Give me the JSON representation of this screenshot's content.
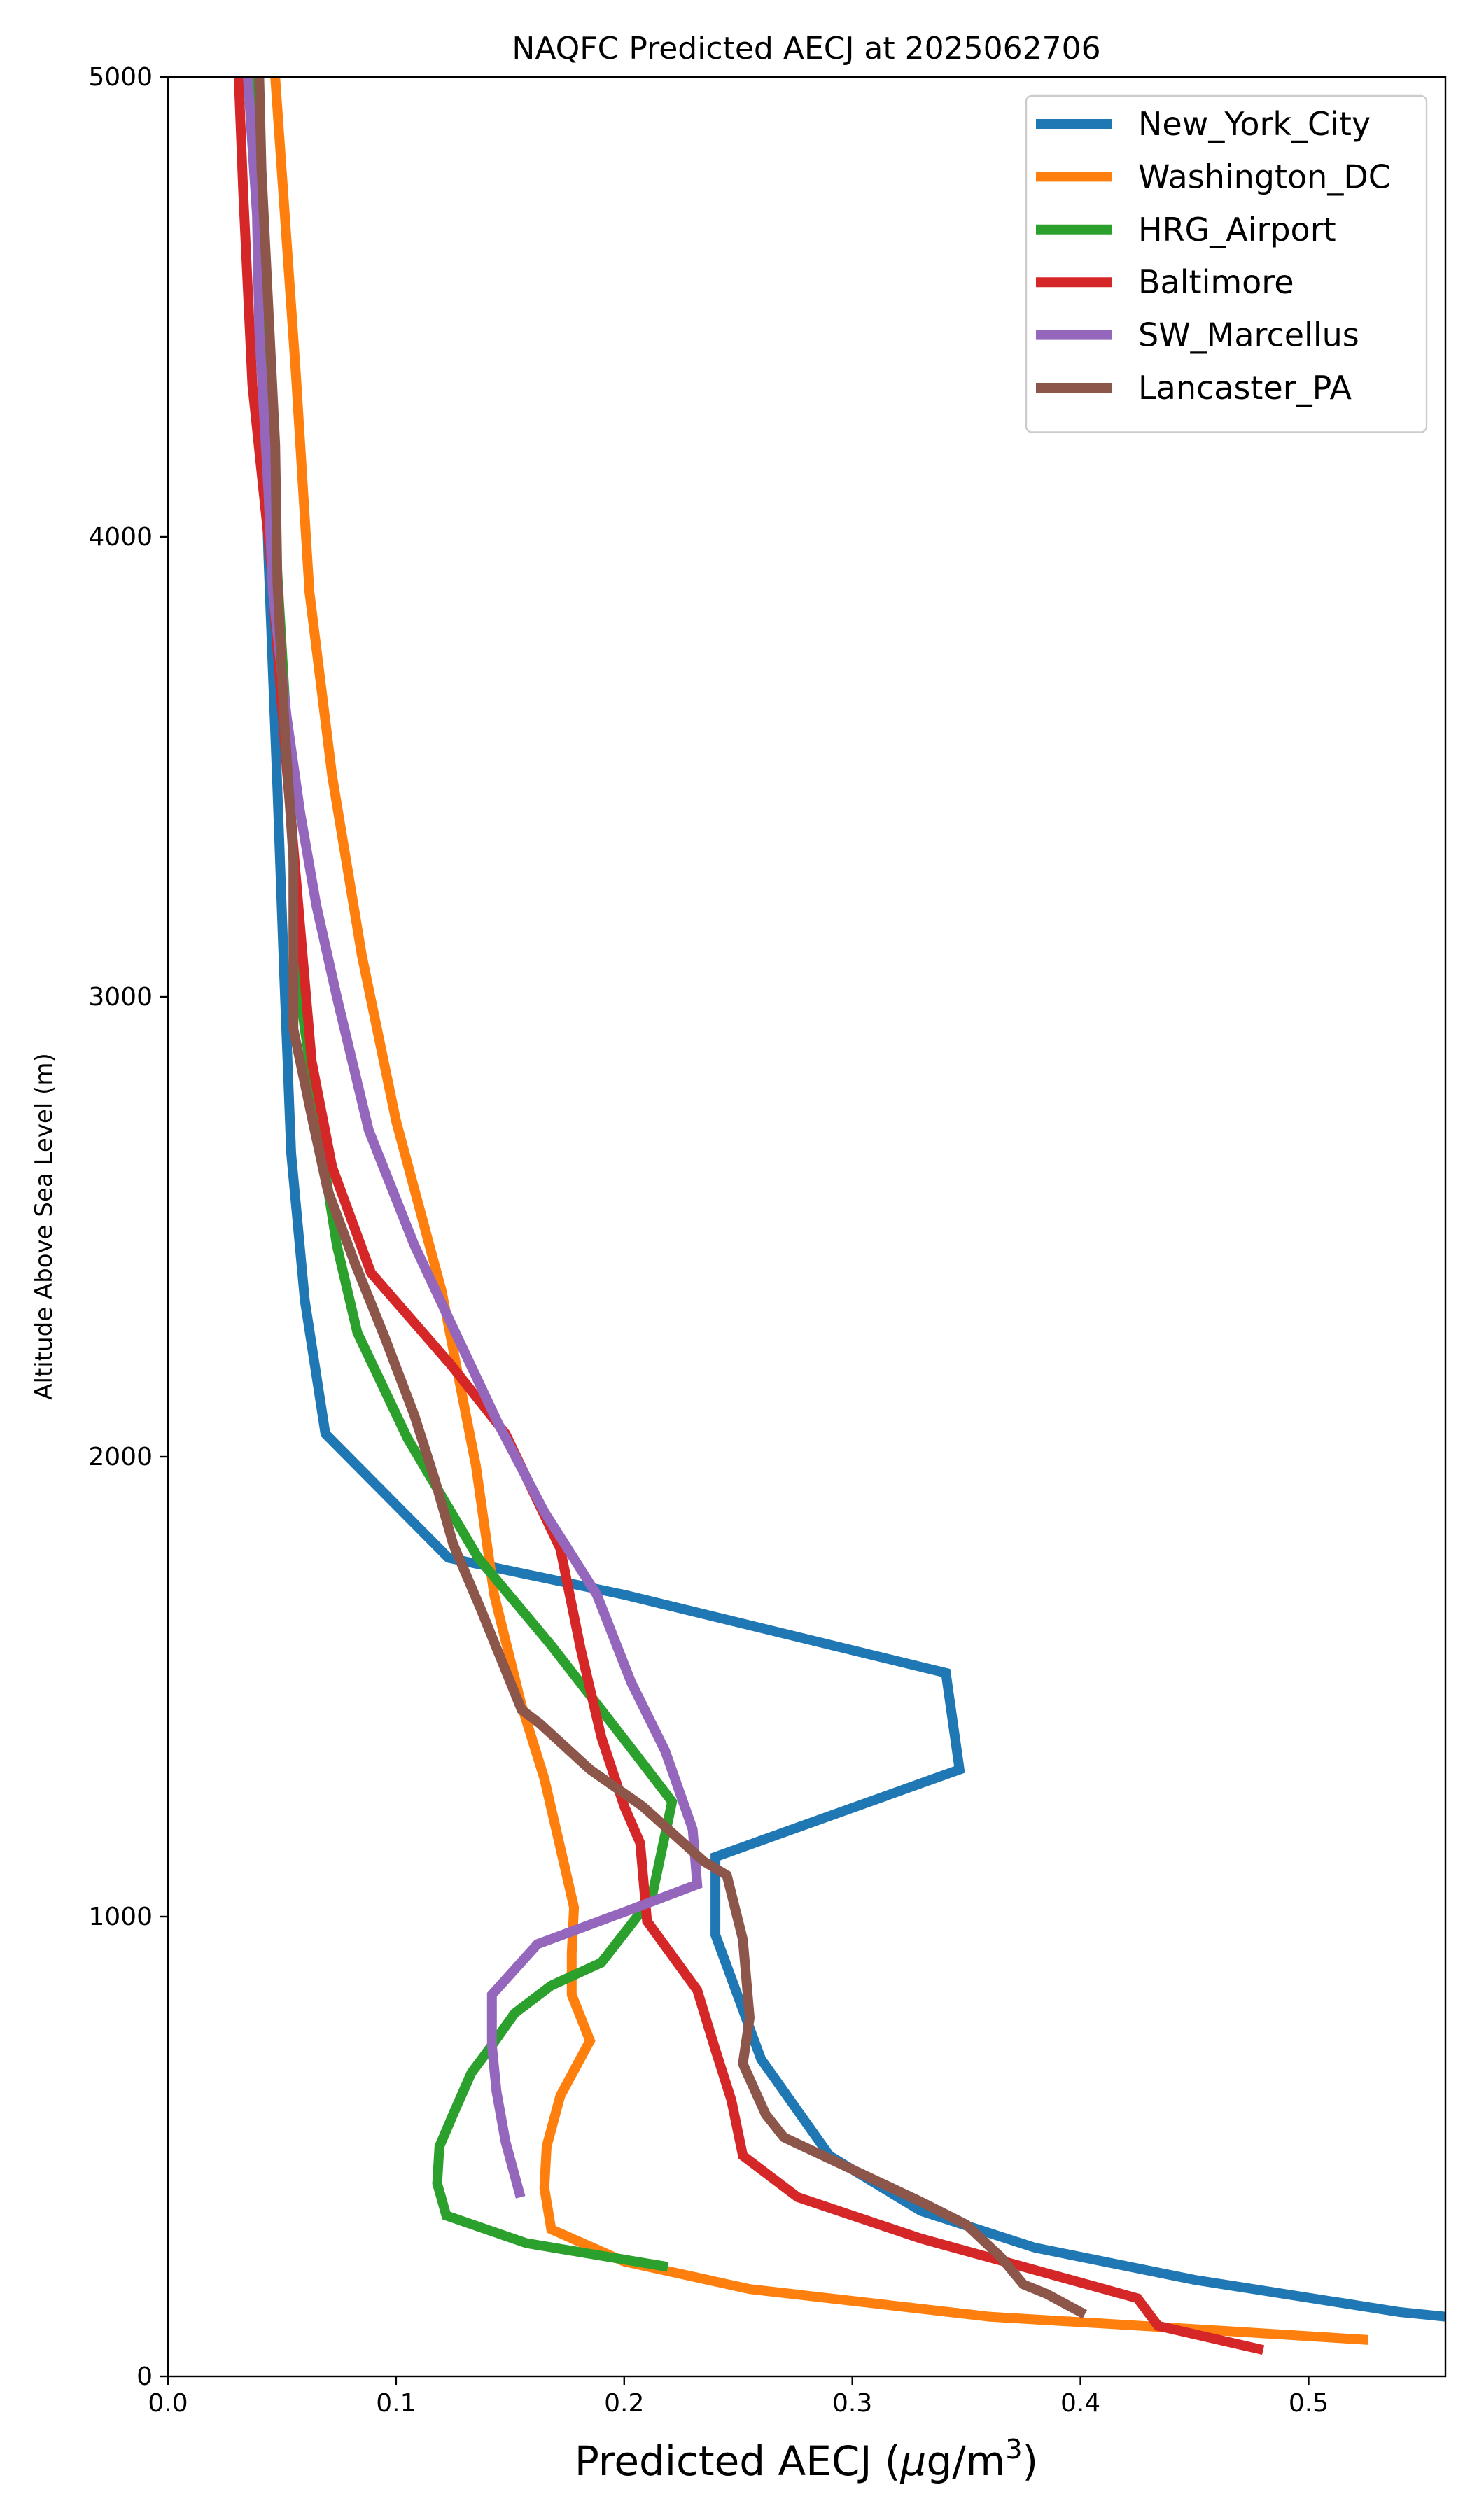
{
  "chart_data": {
    "type": "line",
    "title": "NAQFC Predicted AECJ at 2025062706",
    "xlabel_prefix": "Predicted AECJ (",
    "xlabel_mu": "μ",
    "xlabel_unit": "g/m",
    "xlabel_exp": "3",
    "xlabel_suffix": ")",
    "ylabel": "Altitude Above Sea Level (m)",
    "xlim": [
      0,
      0.56
    ],
    "ylim": [
      0,
      5000
    ],
    "xticks": [
      {
        "value": 0.0,
        "label": "0.0"
      },
      {
        "value": 0.1,
        "label": "0.1"
      },
      {
        "value": 0.2,
        "label": "0.2"
      },
      {
        "value": 0.3,
        "label": "0.3"
      },
      {
        "value": 0.4,
        "label": "0.4"
      },
      {
        "value": 0.5,
        "label": "0.5"
      }
    ],
    "yticks": [
      {
        "value": 0,
        "label": "0"
      },
      {
        "value": 1000,
        "label": "1000"
      },
      {
        "value": 2000,
        "label": "2000"
      },
      {
        "value": 3000,
        "label": "3000"
      },
      {
        "value": 4000,
        "label": "4000"
      },
      {
        "value": 5000,
        "label": "5000"
      }
    ],
    "grid": false,
    "legend_position": "top-right",
    "series": [
      {
        "name": "New_York_City",
        "color": "#1f77b4",
        "points": [
          [
            0.56,
            130
          ],
          [
            0.54,
            140
          ],
          [
            0.45,
            210
          ],
          [
            0.38,
            280
          ],
          [
            0.33,
            360
          ],
          [
            0.29,
            480
          ],
          [
            0.28,
            550
          ],
          [
            0.26,
            690
          ],
          [
            0.24,
            960
          ],
          [
            0.24,
            1130
          ],
          [
            0.347,
            1320
          ],
          [
            0.341,
            1530
          ],
          [
            0.2,
            1700
          ],
          [
            0.123,
            1780
          ],
          [
            0.069,
            2050
          ],
          [
            0.06,
            2340
          ],
          [
            0.054,
            2660
          ],
          [
            0.051,
            3040
          ],
          [
            0.048,
            3450
          ],
          [
            0.044,
            3960
          ],
          [
            0.041,
            4450
          ],
          [
            0.038,
            5000
          ]
        ]
      },
      {
        "name": "Washington_DC",
        "color": "#ff7f0e",
        "points": [
          [
            0.524,
            80
          ],
          [
            0.46,
            100
          ],
          [
            0.36,
            130
          ],
          [
            0.255,
            190
          ],
          [
            0.2,
            250
          ],
          [
            0.168,
            320
          ],
          [
            0.165,
            410
          ],
          [
            0.166,
            500
          ],
          [
            0.172,
            610
          ],
          [
            0.185,
            730
          ],
          [
            0.177,
            830
          ],
          [
            0.177,
            920
          ],
          [
            0.178,
            1020
          ],
          [
            0.172,
            1150
          ],
          [
            0.165,
            1300
          ],
          [
            0.155,
            1460
          ],
          [
            0.143,
            1700
          ],
          [
            0.135,
            1980
          ],
          [
            0.12,
            2360
          ],
          [
            0.1,
            2730
          ],
          [
            0.085,
            3090
          ],
          [
            0.072,
            3480
          ],
          [
            0.062,
            3880
          ],
          [
            0.056,
            4360
          ],
          [
            0.047,
            5000
          ]
        ]
      },
      {
        "name": "HRG_Airport",
        "color": "#2ca02c",
        "points": [
          [
            0.217,
            240
          ],
          [
            0.157,
            290
          ],
          [
            0.122,
            350
          ],
          [
            0.118,
            420
          ],
          [
            0.119,
            500
          ],
          [
            0.125,
            570
          ],
          [
            0.133,
            660
          ],
          [
            0.142,
            720
          ],
          [
            0.152,
            790
          ],
          [
            0.168,
            850
          ],
          [
            0.19,
            900
          ],
          [
            0.212,
            1040
          ],
          [
            0.221,
            1250
          ],
          [
            0.204,
            1360
          ],
          [
            0.168,
            1590
          ],
          [
            0.136,
            1780
          ],
          [
            0.105,
            2040
          ],
          [
            0.083,
            2270
          ],
          [
            0.074,
            2460
          ],
          [
            0.068,
            2650
          ],
          [
            0.058,
            3000
          ],
          [
            0.053,
            3500
          ],
          [
            0.047,
            4000
          ],
          [
            0.043,
            4500
          ],
          [
            0.039,
            5000
          ]
        ]
      },
      {
        "name": "Baltimore",
        "color": "#d62728",
        "points": [
          [
            0.478,
            60
          ],
          [
            0.434,
            110
          ],
          [
            0.425,
            170
          ],
          [
            0.33,
            300
          ],
          [
            0.276,
            390
          ],
          [
            0.252,
            480
          ],
          [
            0.247,
            600
          ],
          [
            0.24,
            710
          ],
          [
            0.232,
            840
          ],
          [
            0.21,
            990
          ],
          [
            0.207,
            1160
          ],
          [
            0.2,
            1240
          ],
          [
            0.19,
            1390
          ],
          [
            0.181,
            1580
          ],
          [
            0.172,
            1800
          ],
          [
            0.148,
            2050
          ],
          [
            0.124,
            2200
          ],
          [
            0.089,
            2400
          ],
          [
            0.072,
            2630
          ],
          [
            0.063,
            2860
          ],
          [
            0.058,
            3150
          ],
          [
            0.052,
            3500
          ],
          [
            0.045,
            3950
          ],
          [
            0.037,
            4330
          ],
          [
            0.033,
            4750
          ],
          [
            0.031,
            5000
          ]
        ]
      },
      {
        "name": "SW_Marcellus",
        "color": "#9467bd",
        "points": [
          [
            0.154,
            400
          ],
          [
            0.148,
            510
          ],
          [
            0.144,
            620
          ],
          [
            0.142,
            720
          ],
          [
            0.142,
            830
          ],
          [
            0.162,
            940
          ],
          [
            0.2,
            1010
          ],
          [
            0.232,
            1070
          ],
          [
            0.23,
            1190
          ],
          [
            0.218,
            1360
          ],
          [
            0.203,
            1510
          ],
          [
            0.188,
            1700
          ],
          [
            0.165,
            1880
          ],
          [
            0.145,
            2070
          ],
          [
            0.126,
            2270
          ],
          [
            0.108,
            2460
          ],
          [
            0.088,
            2710
          ],
          [
            0.074,
            3000
          ],
          [
            0.065,
            3200
          ],
          [
            0.058,
            3400
          ],
          [
            0.052,
            3610
          ],
          [
            0.046,
            3880
          ],
          [
            0.044,
            4100
          ],
          [
            0.04,
            4450
          ],
          [
            0.039,
            4700
          ],
          [
            0.035,
            5000
          ]
        ]
      },
      {
        "name": "Lancaster_PA",
        "color": "#8c564b",
        "points": [
          [
            0.4,
            140
          ],
          [
            0.385,
            180
          ],
          [
            0.375,
            200
          ],
          [
            0.365,
            260
          ],
          [
            0.35,
            330
          ],
          [
            0.33,
            380
          ],
          [
            0.3,
            450
          ],
          [
            0.27,
            520
          ],
          [
            0.262,
            570
          ],
          [
            0.252,
            680
          ],
          [
            0.255,
            780
          ],
          [
            0.252,
            950
          ],
          [
            0.245,
            1090
          ],
          [
            0.235,
            1120
          ],
          [
            0.208,
            1240
          ],
          [
            0.185,
            1320
          ],
          [
            0.163,
            1420
          ],
          [
            0.155,
            1450
          ],
          [
            0.137,
            1670
          ],
          [
            0.125,
            1810
          ],
          [
            0.117,
            1950
          ],
          [
            0.108,
            2090
          ],
          [
            0.095,
            2260
          ],
          [
            0.082,
            2420
          ],
          [
            0.07,
            2580
          ],
          [
            0.063,
            2740
          ],
          [
            0.055,
            2930
          ],
          [
            0.055,
            3300
          ],
          [
            0.051,
            3600
          ],
          [
            0.048,
            3900
          ],
          [
            0.047,
            4200
          ],
          [
            0.044,
            4500
          ],
          [
            0.041,
            4800
          ],
          [
            0.04,
            5000
          ]
        ]
      }
    ]
  }
}
